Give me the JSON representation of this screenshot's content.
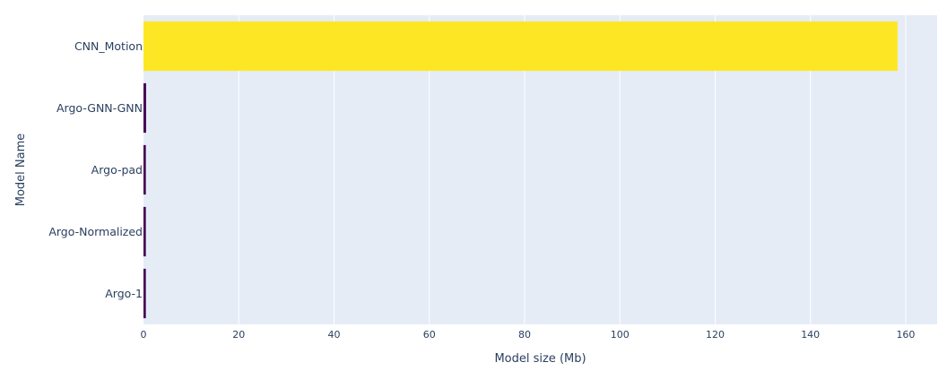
{
  "chart_data": {
    "type": "bar",
    "orientation": "horizontal",
    "categories": [
      "CNN_Motion",
      "Argo-GNN-GNN",
      "Argo-pad",
      "Argo-Normalized",
      "Argo-1"
    ],
    "values": [
      158.3,
      0.55,
      0.5,
      0.5,
      0.5
    ],
    "bar_colors": [
      "#fde725",
      "#440154",
      "#440154",
      "#440154",
      "#440154"
    ],
    "xlabel": "Model size (Mb)",
    "ylabel": "Model Name",
    "xlim": [
      0,
      166.6
    ],
    "xticks": [
      0,
      20,
      40,
      60,
      80,
      100,
      120,
      140,
      160
    ],
    "grid": true,
    "plot_background": "#e5ecf6",
    "gridline_color": "#ffffff",
    "text_color": "#2a3f5f"
  }
}
